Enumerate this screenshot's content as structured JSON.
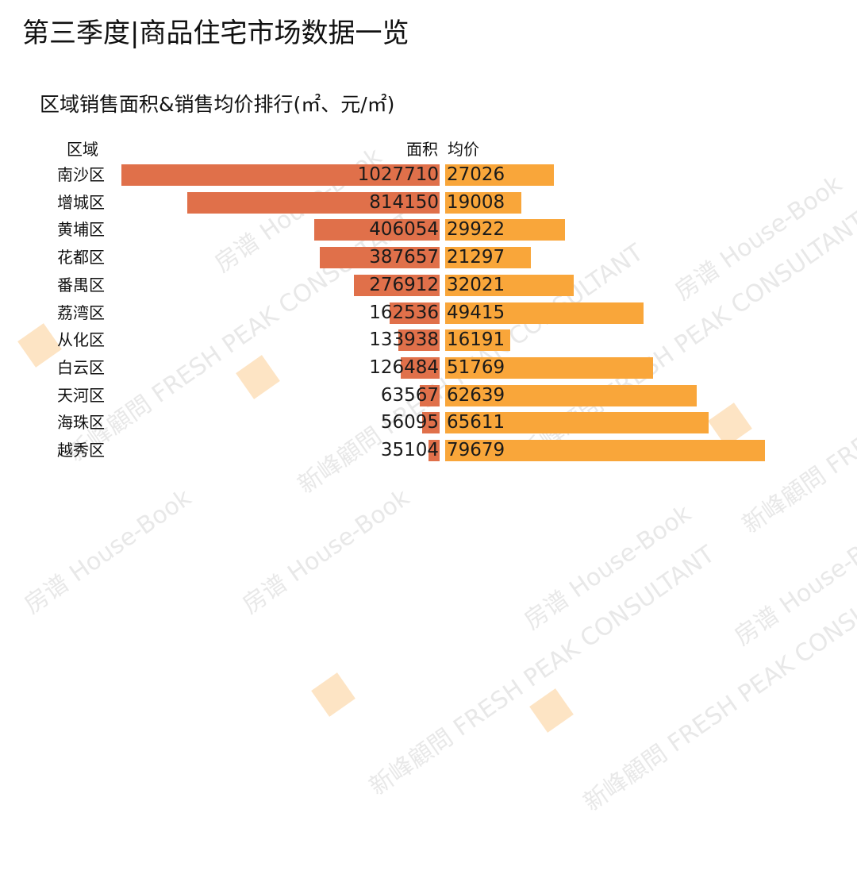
{
  "header": {
    "title": "第三季度|商品住宅市场数据一览",
    "subtitle": "区域销售面积&销售均价排行(㎡、元/㎡)"
  },
  "table_headers": {
    "region": "区域",
    "area": "面积",
    "price": "均价"
  },
  "colors": {
    "area_bar": "#e0704a",
    "price_bar": "#f9a63a"
  },
  "watermarks": {
    "house_book": "房谱 House-Book",
    "fresh_peak": "新峰顧問 FRESH PEAK CONSULTANT"
  },
  "chart_data": {
    "type": "bar",
    "title": "区域销售面积&销售均价排行(㎡、元/㎡)",
    "orientation": "horizontal-butterfly",
    "categories": [
      "南沙区",
      "增城区",
      "黄埔区",
      "花都区",
      "番禺区",
      "荔湾区",
      "从化区",
      "白云区",
      "天河区",
      "海珠区",
      "越秀区"
    ],
    "series": [
      {
        "name": "面积",
        "unit": "㎡",
        "values": [
          1027710,
          814150,
          406054,
          387657,
          276912,
          162536,
          133938,
          126484,
          63567,
          56095,
          35104
        ]
      },
      {
        "name": "均价",
        "unit": "元/㎡",
        "values": [
          27026,
          19008,
          29922,
          21297,
          32021,
          49415,
          16191,
          51769,
          62639,
          65611,
          79679
        ]
      }
    ],
    "xlabel": "",
    "ylabel": "区域",
    "grid": false,
    "legend": "column headers"
  },
  "rows": [
    {
      "region": "南沙区",
      "area": "1027710",
      "price": "27026"
    },
    {
      "region": "增城区",
      "area": "814150",
      "price": "19008"
    },
    {
      "region": "黄埔区",
      "area": "406054",
      "price": "29922"
    },
    {
      "region": "花都区",
      "area": "387657",
      "price": "21297"
    },
    {
      "region": "番禺区",
      "area": "276912",
      "price": "32021"
    },
    {
      "region": "荔湾区",
      "area": "162536",
      "price": "49415"
    },
    {
      "region": "从化区",
      "area": "133938",
      "price": "16191"
    },
    {
      "region": "白云区",
      "area": "126484",
      "price": "51769"
    },
    {
      "region": "天河区",
      "area": "63567",
      "price": "62639"
    },
    {
      "region": "海珠区",
      "area": "56095",
      "price": "65611"
    },
    {
      "region": "越秀区",
      "area": "35104",
      "price": "79679"
    }
  ]
}
